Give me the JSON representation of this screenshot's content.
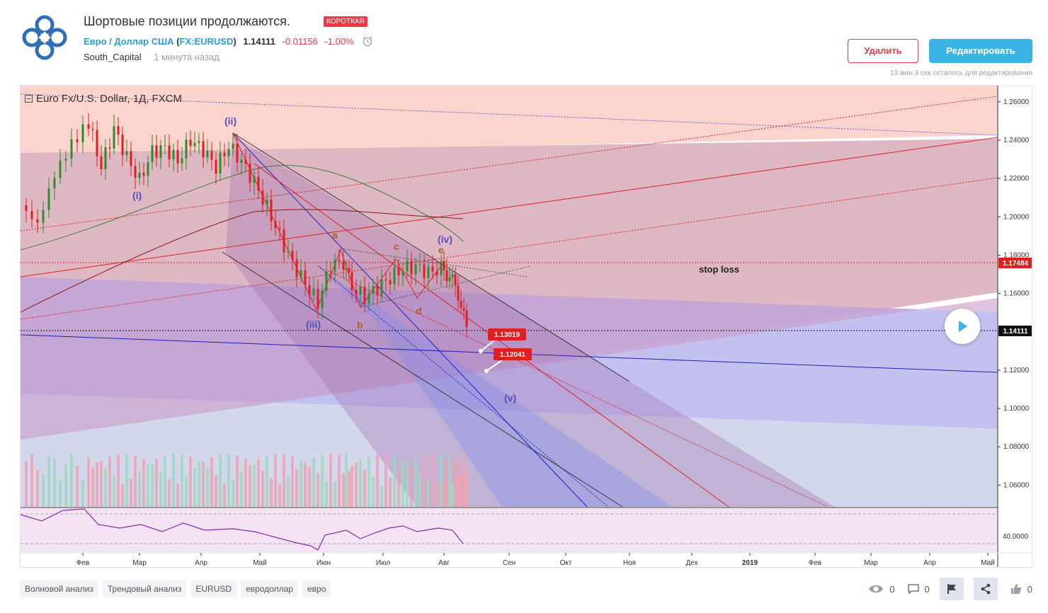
{
  "idea": {
    "title": "Шортовые позиции продолжаются.",
    "badge": "КОРОТКАЯ",
    "symbol_name": "Евро / Доллар США",
    "symbol_open": "(",
    "symbol_ticker": "FX:EURUSD",
    "symbol_close": ")",
    "price": "1.14111",
    "change": "-0.01156",
    "change_pct": "-1.00%",
    "author": "South_Capital",
    "time_ago": "1 минута назад"
  },
  "actions": {
    "delete_label": "Удалить",
    "edit_label": "Редактировать",
    "edit_time_left": "13 мин 3 сек осталось для редактирования"
  },
  "colors": {
    "accent": "#3bb3e4",
    "short": "#f23645",
    "link": "#2a9ed6"
  },
  "chart": {
    "legend": "Euro Fx/U.S. Dollar, 1Д, FXCM",
    "stop_loss_label": "stop loss",
    "wave_labels": {
      "i": "(i)",
      "ii": "(ii)",
      "iii": "(iii)",
      "iv": "(iv)",
      "v": "(v)",
      "a": "a",
      "b": "b",
      "c": "c",
      "d": "d",
      "e": "e"
    },
    "target1": "1.13019",
    "target2": "1.12041",
    "current_price_label": "1.14111",
    "stop_price_label": "1.17484",
    "osc_label": "40.0000"
  },
  "chart_data": {
    "type": "line",
    "series_type": "candlestick",
    "symbol": "EURUSD",
    "y_ticks": [
      "1.26000",
      "1.24000",
      "1.22000",
      "1.20000",
      "1.18000",
      "1.16000",
      "1.14000",
      "1.12000",
      "1.10000",
      "1.08000",
      "1.06000"
    ],
    "ylim": [
      1.052,
      1.264
    ],
    "x_ticks": [
      "Фев",
      "Мар",
      "Апр",
      "Май",
      "Июн",
      "Июл",
      "Авг",
      "Сен",
      "Окт",
      "Ноя",
      "Дек",
      "2019",
      "Фев",
      "Мар",
      "Апр",
      "Май"
    ],
    "stop_loss": 1.17484,
    "last_price": 1.14111,
    "targets": [
      1.13019,
      1.12041
    ],
    "price_path": [
      [
        0,
        1.206
      ],
      [
        4,
        1.196
      ],
      [
        8,
        1.222
      ],
      [
        12,
        1.238
      ],
      [
        16,
        1.249
      ],
      [
        19,
        1.226
      ],
      [
        22,
        1.246
      ],
      [
        25,
        1.231
      ],
      [
        28,
        1.219
      ],
      [
        31,
        1.234
      ],
      [
        34,
        1.236
      ],
      [
        37,
        1.229
      ],
      [
        40,
        1.24
      ],
      [
        43,
        1.235
      ],
      [
        46,
        1.226
      ],
      [
        49,
        1.237
      ],
      [
        52,
        1.229
      ],
      [
        55,
        1.218
      ],
      [
        58,
        1.205
      ],
      [
        61,
        1.19
      ],
      [
        64,
        1.176
      ],
      [
        67,
        1.165
      ],
      [
        70,
        1.155
      ],
      [
        73,
        1.175
      ],
      [
        76,
        1.176
      ],
      [
        78,
        1.163
      ],
      [
        81,
        1.158
      ],
      [
        84,
        1.163
      ],
      [
        87,
        1.168
      ],
      [
        90,
        1.173
      ],
      [
        93,
        1.174
      ],
      [
        96,
        1.171
      ],
      [
        99,
        1.173
      ],
      [
        101,
        1.169
      ],
      [
        103,
        1.16
      ],
      [
        105,
        1.141
      ]
    ]
  },
  "tags": [
    "Волновой анализ",
    "Трендовый анализ",
    "EURUSD",
    "евродоллар",
    "евро"
  ],
  "social": {
    "views": "0",
    "comments": "0",
    "likes": "0"
  }
}
